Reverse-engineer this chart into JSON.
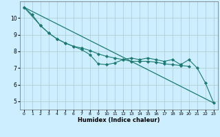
{
  "title": "",
  "xlabel": "Humidex (Indice chaleur)",
  "bg_color": "#cceeff",
  "grid_color": "#aacccc",
  "line_color": "#1a7a6e",
  "xlim": [
    -0.5,
    23.5
  ],
  "ylim": [
    4.5,
    11.0
  ],
  "xticks": [
    0,
    1,
    2,
    3,
    4,
    5,
    6,
    7,
    8,
    9,
    10,
    11,
    12,
    13,
    14,
    15,
    16,
    17,
    18,
    19,
    20,
    21,
    22,
    23
  ],
  "yticks": [
    5,
    6,
    7,
    8,
    9,
    10
  ],
  "line1_x": [
    0,
    1,
    2,
    3,
    4,
    5,
    6,
    7,
    8,
    9,
    10,
    11,
    12,
    13,
    14,
    15,
    16,
    17,
    18,
    19,
    20,
    21,
    22,
    23
  ],
  "line1_y": [
    10.65,
    10.2,
    9.55,
    9.1,
    8.75,
    8.5,
    8.3,
    8.1,
    7.8,
    7.25,
    7.2,
    7.3,
    7.5,
    7.6,
    7.5,
    7.6,
    7.5,
    7.4,
    7.5,
    7.2,
    7.5,
    7.0,
    6.1,
    4.9
  ],
  "line2_x": [
    0,
    2,
    3,
    4,
    5,
    6,
    7,
    8,
    9,
    10,
    11,
    12,
    13,
    14,
    15,
    16,
    17,
    18,
    19,
    20
  ],
  "line2_y": [
    10.65,
    9.55,
    9.1,
    8.75,
    8.5,
    8.3,
    8.2,
    8.05,
    7.85,
    7.7,
    7.6,
    7.5,
    7.4,
    7.4,
    7.4,
    7.35,
    7.25,
    7.2,
    7.15,
    7.1
  ],
  "line3_x": [
    0,
    23
  ],
  "line3_y": [
    10.65,
    4.9
  ]
}
